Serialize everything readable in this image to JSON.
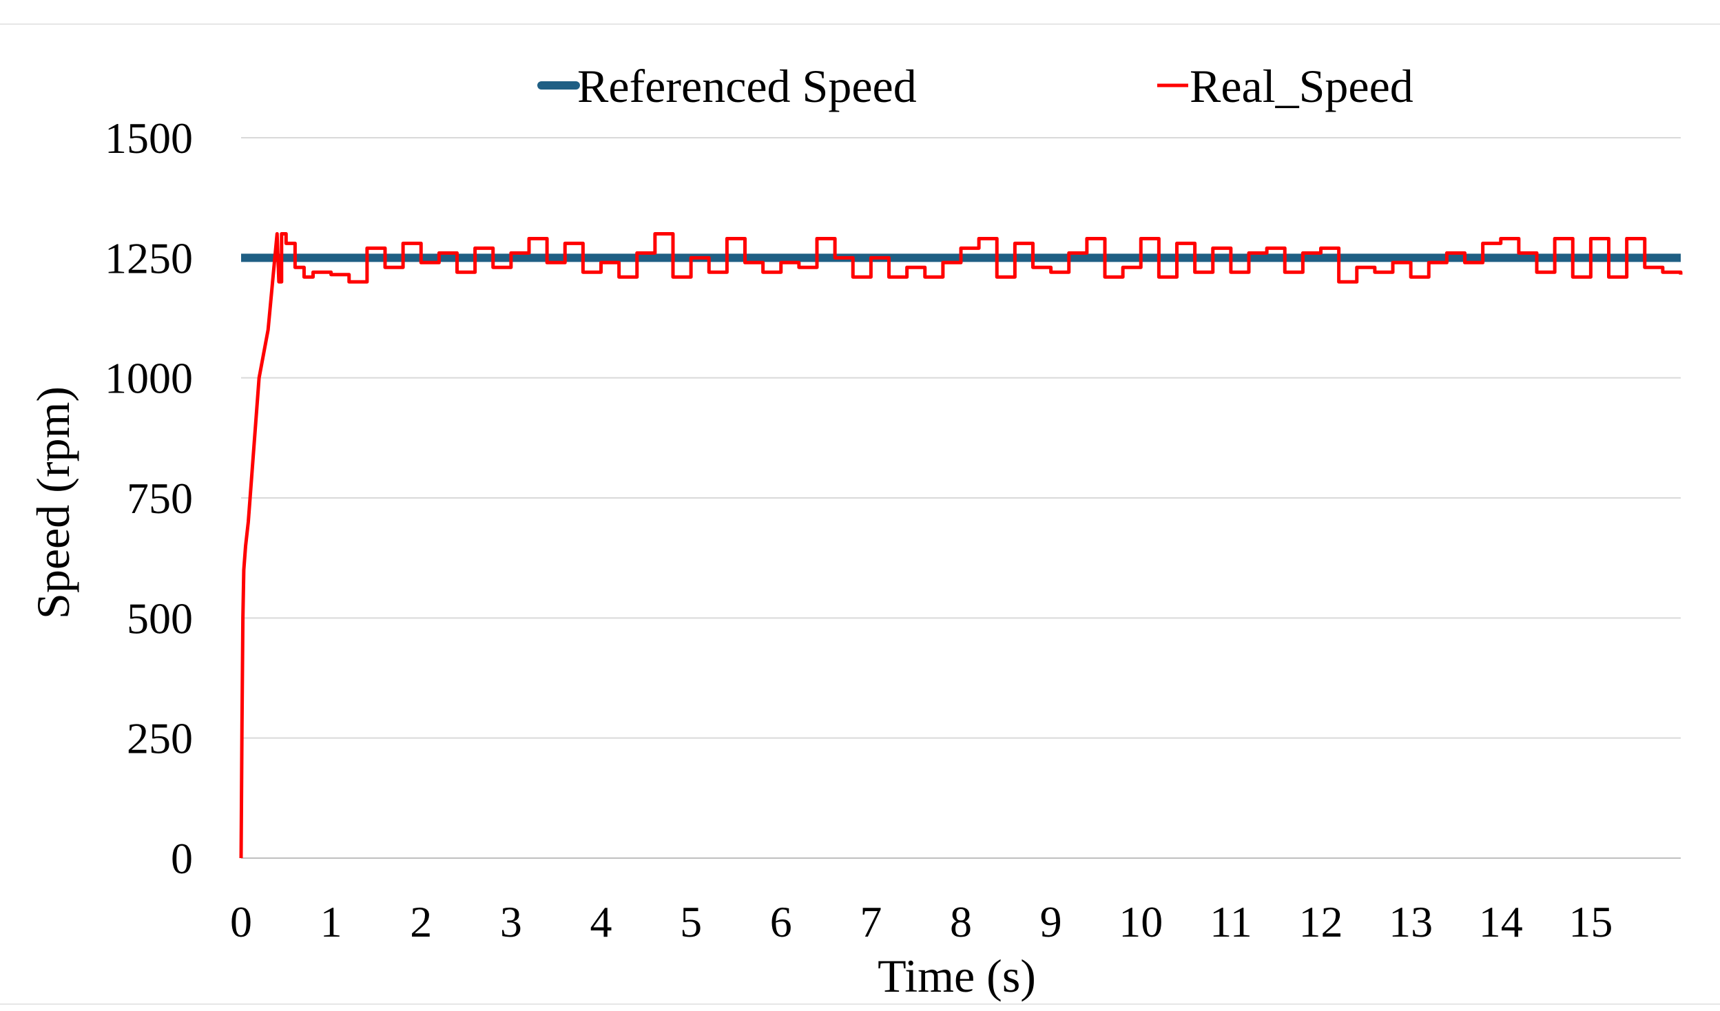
{
  "chart_data": {
    "type": "line",
    "xlabel": "Time (s)",
    "ylabel": "Speed (rpm)",
    "xlim": [
      0,
      16
    ],
    "ylim": [
      0,
      1500
    ],
    "x_ticks": [
      "0",
      "1",
      "2",
      "3",
      "4",
      "5",
      "6",
      "7",
      "8",
      "9",
      "10",
      "11",
      "12",
      "13",
      "14",
      "15"
    ],
    "y_ticks": [
      "0",
      "250",
      "500",
      "750",
      "1000",
      "1250",
      "1500"
    ],
    "grid": "horizontal",
    "legend_position": "top",
    "series": [
      {
        "name": "Referenced Speed",
        "color": "#1f5f84",
        "x": [
          0,
          16
        ],
        "y": [
          1250,
          1250
        ]
      },
      {
        "name": "Real_Speed",
        "color": "#ff0000",
        "x": [
          0,
          0.01,
          0.02,
          0.03,
          0.05,
          0.08,
          0.12,
          0.16,
          0.2,
          0.25,
          0.3,
          0.35,
          0.4,
          0.42,
          0.45,
          0.5,
          0.6,
          0.7,
          0.8,
          1.0,
          1.2,
          1.4,
          1.6,
          1.8,
          2.0,
          2.2,
          2.4,
          2.6,
          2.8,
          3.0,
          3.2,
          3.4,
          3.6,
          3.8,
          4.0,
          4.2,
          4.4,
          4.6,
          4.8,
          5.0,
          5.2,
          5.4,
          5.6,
          5.8,
          6.0,
          6.2,
          6.4,
          6.6,
          6.8,
          7.0,
          7.2,
          7.4,
          7.6,
          7.8,
          8.0,
          8.2,
          8.4,
          8.6,
          8.8,
          9.0,
          9.2,
          9.4,
          9.6,
          9.8,
          10.0,
          10.2,
          10.4,
          10.6,
          10.8,
          11.0,
          11.2,
          11.4,
          11.6,
          11.8,
          12.0,
          12.2,
          12.4,
          12.6,
          12.8,
          13.0,
          13.2,
          13.4,
          13.6,
          13.8,
          14.0,
          14.2,
          14.4,
          14.6,
          14.8,
          15.0,
          15.2,
          15.4,
          15.6,
          15.8,
          16.0
        ],
        "y": [
          0,
          280,
          500,
          600,
          650,
          700,
          800,
          900,
          1000,
          1050,
          1100,
          1200,
          1300,
          1200,
          1300,
          1280,
          1230,
          1210,
          1220,
          1215,
          1200,
          1270,
          1230,
          1280,
          1240,
          1260,
          1220,
          1270,
          1230,
          1260,
          1290,
          1240,
          1280,
          1220,
          1240,
          1210,
          1260,
          1300,
          1210,
          1250,
          1220,
          1290,
          1240,
          1220,
          1240,
          1230,
          1290,
          1250,
          1210,
          1250,
          1210,
          1230,
          1210,
          1240,
          1270,
          1290,
          1210,
          1280,
          1230,
          1220,
          1260,
          1290,
          1210,
          1230,
          1290,
          1210,
          1280,
          1220,
          1270,
          1220,
          1260,
          1270,
          1220,
          1260,
          1270,
          1200,
          1230,
          1220,
          1240,
          1210,
          1240,
          1260,
          1240,
          1280,
          1290,
          1260,
          1220,
          1290,
          1210,
          1290,
          1210,
          1290,
          1230,
          1220,
          1215
        ]
      }
    ]
  }
}
